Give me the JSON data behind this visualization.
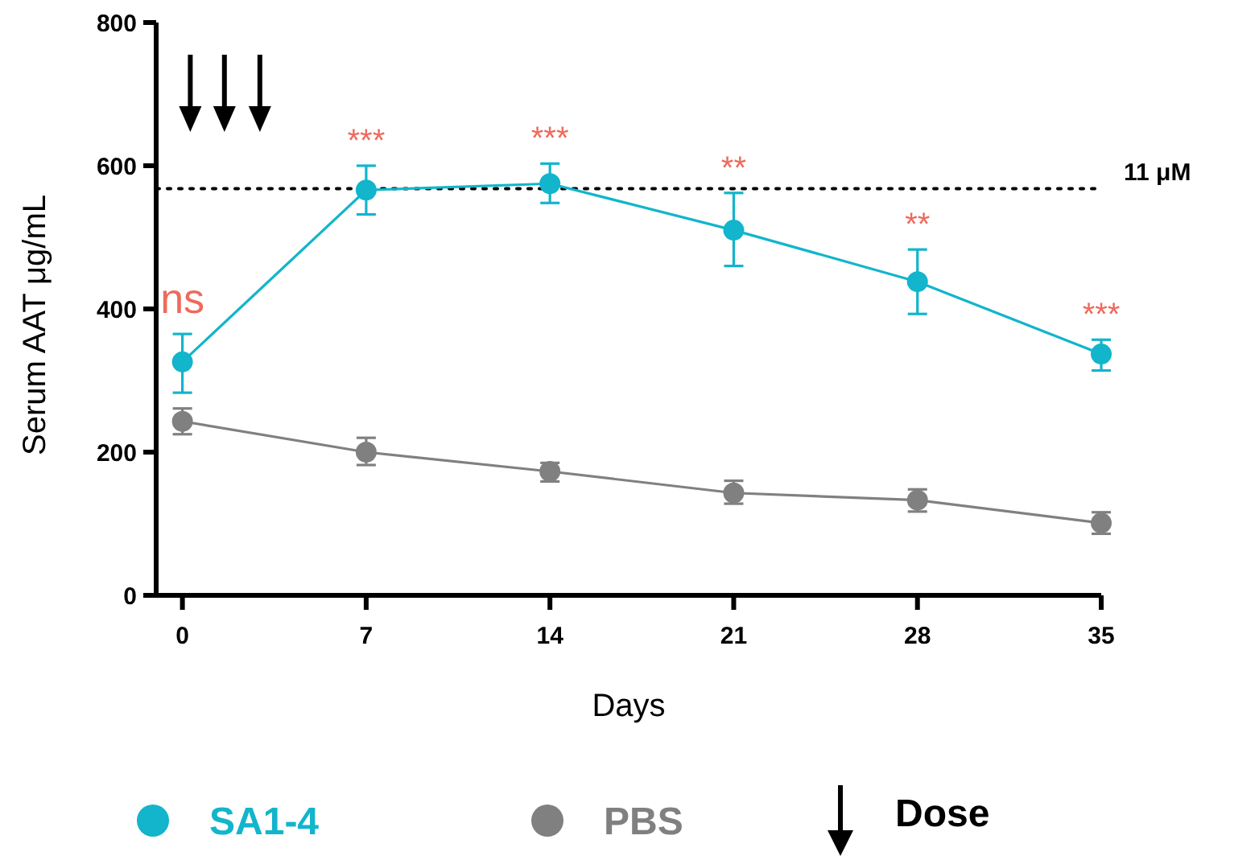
{
  "chart_data": {
    "type": "line",
    "xlabel": "Days",
    "ylabel": "Serum AAT μg/mL",
    "x": [
      0,
      7,
      14,
      21,
      28,
      35
    ],
    "xlim": [
      -1,
      35
    ],
    "xticks": [
      0,
      7,
      14,
      21,
      28,
      35
    ],
    "ylim": [
      0,
      800
    ],
    "yticks": [
      0,
      200,
      400,
      600,
      800
    ],
    "marker": "circle",
    "line_style": "solid",
    "legend": "bottom",
    "series": [
      {
        "name": "SA1-4",
        "color": "#12b5cb",
        "values": [
          326,
          566,
          575,
          510,
          438,
          337
        ],
        "errors": [
          [
            283,
            365
          ],
          [
            532,
            600
          ],
          [
            548,
            603
          ],
          [
            460,
            562
          ],
          [
            393,
            483
          ],
          [
            314,
            357
          ]
        ]
      },
      {
        "name": "PBS",
        "color": "#808080",
        "values": [
          243,
          200,
          173,
          143,
          133,
          101
        ],
        "errors": [
          [
            225,
            261
          ],
          [
            182,
            220
          ],
          [
            159,
            185
          ],
          [
            128,
            160
          ],
          [
            117,
            148
          ],
          [
            86,
            116
          ]
        ]
      }
    ],
    "ref_lines": [
      {
        "axis": "y",
        "value": 568,
        "label": "11 μM",
        "line_style": "dotted",
        "color": "#000000"
      }
    ],
    "annotations": [
      {
        "text": "ns",
        "x": 0,
        "y": 326
      },
      {
        "text": "***",
        "x": 7,
        "y": 566
      },
      {
        "text": "***",
        "x": 14,
        "y": 575
      },
      {
        "text": "**",
        "x": 21,
        "y": 510
      },
      {
        "text": "**",
        "x": 28,
        "y": 438
      },
      {
        "text": "***",
        "x": 35,
        "y": 337
      },
      "Dose"
    ]
  }
}
